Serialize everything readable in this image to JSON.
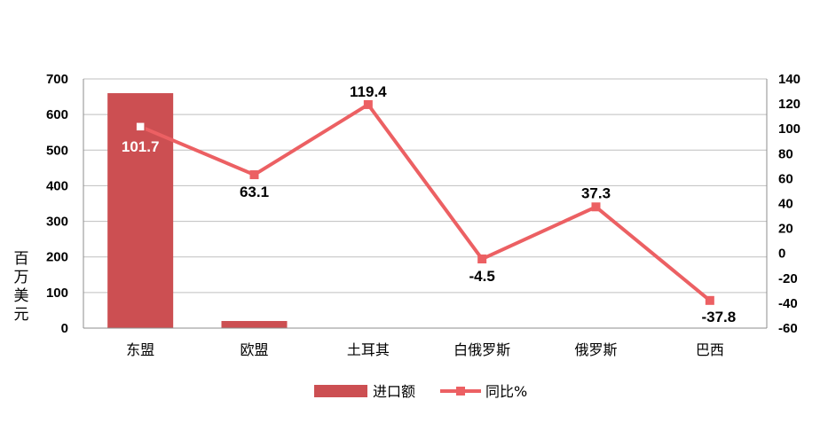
{
  "chart_data": {
    "type": "bar+line",
    "categories": [
      "东盟",
      "欧盟",
      "土耳其",
      "白俄罗斯",
      "俄罗斯",
      "巴西"
    ],
    "series": [
      {
        "name": "进口额",
        "type": "bar",
        "axis": "left",
        "values": [
          660,
          20,
          1,
          0,
          0,
          0
        ],
        "color": "#cc4f52"
      },
      {
        "name": "同比%",
        "type": "line",
        "axis": "right",
        "values": [
          101.7,
          63.1,
          119.4,
          -4.5,
          37.3,
          -37.8
        ],
        "color": "#ec6063"
      }
    ],
    "data_labels": [
      "101.7",
      "63.1",
      "119.4",
      "-4.5",
      "37.3",
      "-37.8"
    ],
    "ylabel": "百万美元",
    "ylim": [
      0,
      700
    ],
    "y2lim": [
      -60,
      140
    ],
    "yticks": [
      0,
      100,
      200,
      300,
      400,
      500,
      600,
      700
    ],
    "y2ticks": [
      -60,
      -40,
      -20,
      0,
      20,
      40,
      60,
      80,
      100,
      120,
      140
    ],
    "grid": true,
    "legend": "bottom"
  }
}
